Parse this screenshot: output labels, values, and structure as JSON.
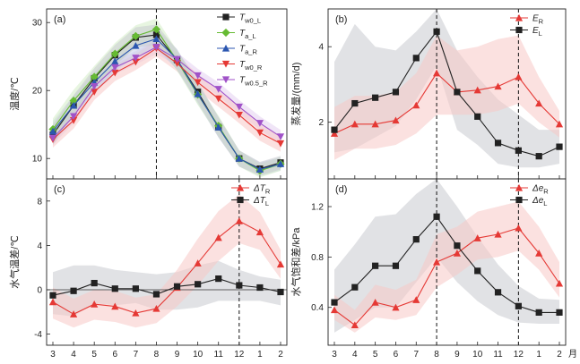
{
  "chart_data": [
    {
      "type": "line",
      "panel": "(a)",
      "ylabel": "温度/℃",
      "xlabel": "",
      "categories": [
        "3",
        "4",
        "5",
        "6",
        "7",
        "8",
        "9",
        "10",
        "11",
        "12",
        "1",
        "2"
      ],
      "ylim": [
        7,
        32
      ],
      "yticks": [
        10,
        20,
        30
      ],
      "vlines": [
        "8"
      ],
      "legend_position": "top-right",
      "series": [
        {
          "name": "T_w0_L",
          "label": "T",
          "sub": "w0_L",
          "color": "#222222",
          "marker": "square",
          "values": [
            13.5,
            17.8,
            21.8,
            25.2,
            27.8,
            28.2,
            24.5,
            19.8,
            14.6,
            10.0,
            8.5,
            9.4
          ],
          "band": [
            1.5,
            1.5,
            1.5,
            1.5,
            1.5,
            1.5,
            1.5,
            1.5,
            1.5,
            1.2,
            1.0,
            1.0
          ]
        },
        {
          "name": "T_a_L",
          "label": "T",
          "sub": "a_L",
          "color": "#66bb33",
          "marker": "diamond",
          "values": [
            14.3,
            18.5,
            22.0,
            25.4,
            28.0,
            29.0,
            24.4,
            19.4,
            14.8,
            10.0,
            8.2,
            9.2
          ],
          "band": [
            1.6,
            1.6,
            1.6,
            1.6,
            1.6,
            1.6,
            1.5,
            1.5,
            1.5,
            1.2,
            1.0,
            1.0
          ]
        },
        {
          "name": "T_a_R",
          "label": "T",
          "sub": "a_R",
          "color": "#2b56b0",
          "marker": "triangle-up",
          "values": [
            14.0,
            17.8,
            21.2,
            24.3,
            26.6,
            27.6,
            24.6,
            19.5,
            14.6,
            10.0,
            8.4,
            9.2
          ],
          "band": [
            1.5,
            1.5,
            1.5,
            1.5,
            1.5,
            1.5,
            1.5,
            1.5,
            1.5,
            1.2,
            1.0,
            1.0
          ]
        },
        {
          "name": "T_w0_R",
          "label": "T",
          "sub": "w0_R",
          "color": "#e53935",
          "marker": "triangle-down",
          "values": [
            12.8,
            15.6,
            19.8,
            22.6,
            24.2,
            26.2,
            24.0,
            21.2,
            18.8,
            16.4,
            13.8,
            12.2
          ],
          "band": [
            1.2,
            1.2,
            1.2,
            1.2,
            1.2,
            1.2,
            1.2,
            1.2,
            1.2,
            1.2,
            1.2,
            1.2
          ]
        },
        {
          "name": "T_w0.5_R",
          "label": "T",
          "sub": "w0.5_R",
          "color": "#a052c8",
          "marker": "triangle-down",
          "values": [
            13.0,
            16.2,
            20.6,
            23.4,
            24.8,
            26.4,
            24.6,
            22.2,
            20.2,
            17.6,
            15.2,
            13.2
          ],
          "band": [
            1.0,
            1.0,
            1.0,
            1.0,
            1.0,
            1.0,
            1.0,
            1.0,
            1.0,
            1.0,
            1.0,
            1.0
          ]
        }
      ]
    },
    {
      "type": "line",
      "panel": "(b)",
      "ylabel": "蒸发量/(mm/d)",
      "xlabel": "",
      "categories": [
        "3",
        "4",
        "5",
        "6",
        "7",
        "8",
        "9",
        "10",
        "11",
        "12",
        "1",
        "2"
      ],
      "ylim": [
        0.5,
        5
      ],
      "yticks": [
        2,
        4
      ],
      "vlines": [
        "8",
        "12"
      ],
      "legend_position": "top-right",
      "series": [
        {
          "name": "E_R",
          "label": "E",
          "sub": "R",
          "color": "#e53935",
          "marker": "triangle-up",
          "values": [
            1.7,
            1.95,
            1.95,
            2.05,
            2.45,
            3.3,
            2.8,
            2.85,
            2.95,
            3.2,
            2.5,
            1.95
          ],
          "band_low": [
            1.0,
            1.3,
            1.3,
            1.4,
            1.7,
            2.2,
            2.2,
            2.2,
            2.3,
            2.5,
            2.0,
            1.6
          ],
          "band_high": [
            2.4,
            2.7,
            2.7,
            2.8,
            3.3,
            4.3,
            3.9,
            4.0,
            4.2,
            4.3,
            3.2,
            2.3
          ]
        },
        {
          "name": "E_L",
          "label": "E",
          "sub": "L",
          "color": "#222222",
          "marker": "square",
          "values": [
            1.8,
            2.5,
            2.65,
            2.8,
            3.7,
            4.4,
            2.8,
            2.15,
            1.45,
            1.25,
            1.1,
            1.35
          ],
          "band_low": [
            1.2,
            1.3,
            1.6,
            1.9,
            2.6,
            3.5,
            1.8,
            1.4,
            0.9,
            0.8,
            0.8,
            0.9
          ],
          "band_high": [
            3.6,
            4.6,
            4.0,
            3.9,
            4.4,
            5.0,
            3.9,
            3.2,
            2.6,
            2.2,
            1.8,
            1.8
          ]
        }
      ]
    },
    {
      "type": "line",
      "panel": "(c)",
      "ylabel": "水气温差/℃",
      "xlabel": "",
      "categories": [
        "3",
        "4",
        "5",
        "6",
        "7",
        "8",
        "9",
        "10",
        "11",
        "12",
        "1",
        "2"
      ],
      "ylim": [
        -5,
        10
      ],
      "yticks": [
        -4,
        0,
        4,
        8
      ],
      "hline": 0,
      "vlines": [
        "12"
      ],
      "legend_position": "top-right",
      "series": [
        {
          "name": "ΔT_R",
          "label": "ΔT",
          "sub": "R",
          "color": "#e53935",
          "marker": "triangle-up",
          "values": [
            -1.1,
            -2.2,
            -1.3,
            -1.5,
            -2.1,
            -1.7,
            0.2,
            2.4,
            4.7,
            6.2,
            5.2,
            2.3
          ],
          "band_low": [
            -2.6,
            -3.4,
            -2.7,
            -2.9,
            -3.4,
            -3.0,
            -1.5,
            0.4,
            2.6,
            4.2,
            3.6,
            1.0
          ],
          "band_high": [
            0.2,
            -0.8,
            0.0,
            -0.1,
            -0.7,
            -0.4,
            1.8,
            4.6,
            7.1,
            8.6,
            7.0,
            3.6
          ]
        },
        {
          "name": "ΔT_L",
          "label": "ΔT",
          "sub": "L",
          "color": "#222222",
          "marker": "square",
          "values": [
            -0.5,
            -0.1,
            0.6,
            0.1,
            0.1,
            -0.4,
            0.3,
            0.5,
            1.0,
            0.4,
            0.2,
            -0.2
          ],
          "band_low": [
            -2.2,
            -2.4,
            -1.2,
            -1.4,
            -1.2,
            -1.8,
            -1.8,
            -1.6,
            -1.0,
            -1.0,
            -1.0,
            -1.4
          ],
          "band_high": [
            1.6,
            2.2,
            2.2,
            1.8,
            1.6,
            1.4,
            1.6,
            2.2,
            2.6,
            1.8,
            1.2,
            0.9
          ]
        }
      ]
    },
    {
      "type": "line",
      "panel": "(d)",
      "ylabel": "水气饱和差/kPa",
      "xlabel": "月",
      "categories": [
        "3",
        "4",
        "5",
        "6",
        "7",
        "8",
        "9",
        "10",
        "11",
        "12",
        "1",
        "2"
      ],
      "ylim": [
        0.1,
        1.42
      ],
      "yticks": [
        0.4,
        0.8,
        1.2
      ],
      "vlines": [
        "8",
        "12"
      ],
      "legend_position": "top-right",
      "series": [
        {
          "name": "Δe_R",
          "label": "Δe",
          "sub": "R",
          "color": "#e53935",
          "marker": "triangle-up",
          "values": [
            0.38,
            0.26,
            0.44,
            0.4,
            0.46,
            0.76,
            0.83,
            0.95,
            0.98,
            1.03,
            0.83,
            0.59
          ],
          "band_low": [
            0.3,
            0.2,
            0.32,
            0.3,
            0.34,
            0.56,
            0.66,
            0.78,
            0.8,
            0.85,
            0.7,
            0.48
          ],
          "band_high": [
            0.5,
            0.38,
            0.58,
            0.54,
            0.62,
            0.98,
            1.04,
            1.16,
            1.2,
            1.24,
            1.04,
            0.76
          ]
        },
        {
          "name": "Δe_L",
          "label": "Δe",
          "sub": "L",
          "color": "#222222",
          "marker": "square",
          "values": [
            0.44,
            0.56,
            0.73,
            0.73,
            0.94,
            1.12,
            0.89,
            0.69,
            0.52,
            0.41,
            0.36,
            0.36
          ],
          "band_low": [
            0.2,
            0.3,
            0.4,
            0.4,
            0.6,
            0.8,
            0.6,
            0.45,
            0.34,
            0.28,
            0.27,
            0.27
          ],
          "band_high": [
            0.7,
            0.9,
            1.12,
            1.14,
            1.3,
            1.42,
            1.2,
            0.96,
            0.74,
            0.57,
            0.47,
            0.46
          ]
        }
      ]
    }
  ]
}
